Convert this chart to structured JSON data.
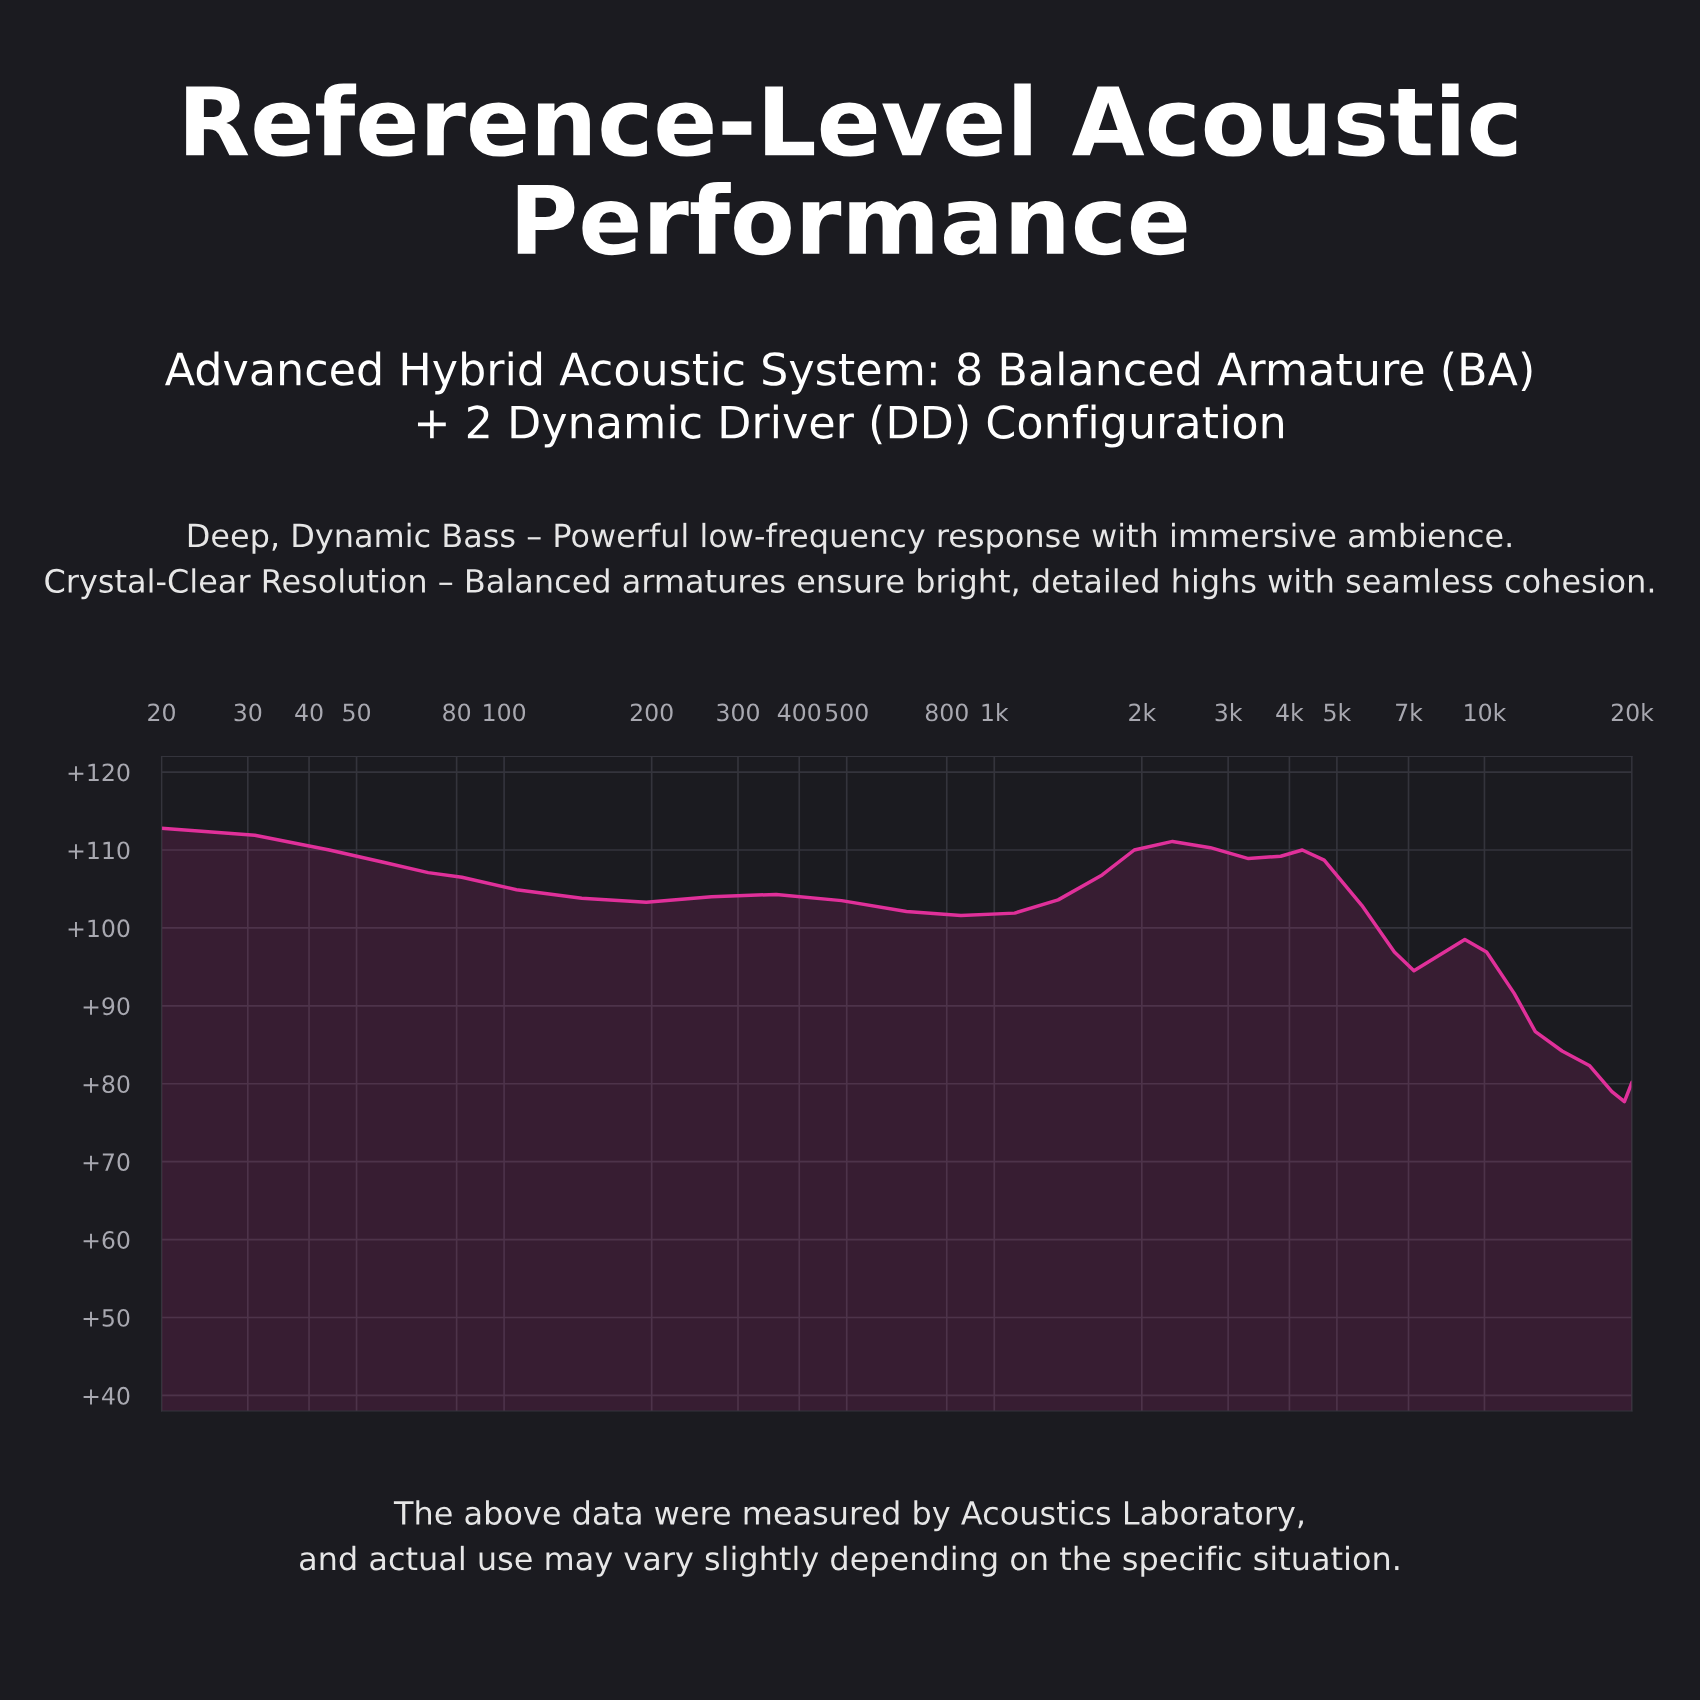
{
  "chart_data": {
    "type": "area",
    "title": "Reference-Level Acoustic\nPerformance",
    "subtitle": "Advanced Hybrid Acoustic System: 8 Balanced Armature (BA)\n+ 2 Dynamic Driver (DD) Configuration",
    "annotations": [
      "Deep, Dynamic Bass – Powerful low-frequency response with immersive ambience.\nCrystal-Clear Resolution – Balanced armatures ensure bright, detailed highs with seamless cohesion.",
      "The above data were measured by Acoustics Laboratory,\nand actual use may vary slightly depending on the specific situation."
    ],
    "log": "x",
    "series": [
      {
        "color": "#e0309a",
        "x": [
          20,
          31,
          44,
          57,
          70,
          82,
          106,
          144,
          195,
          265,
          359,
          488,
          662,
          855,
          1100,
          1350,
          1660,
          1930,
          2310,
          2760,
          3300,
          3840,
          4250,
          4710,
          5620,
          6550,
          7180,
          8040,
          9120,
          10100,
          11500,
          12700,
          14400,
          16400,
          18200,
          19300,
          20000
        ],
        "values": [
          112.8,
          111.9,
          110,
          108.4,
          107.1,
          106.5,
          104.9,
          103.8,
          103.3,
          104,
          104.3,
          103.5,
          102.1,
          101.6,
          101.9,
          103.6,
          106.8,
          110,
          111.1,
          110.3,
          108.9,
          109.2,
          110,
          108.7,
          102.9,
          96.9,
          94.5,
          96.4,
          98.5,
          96.9,
          91.6,
          86.7,
          84.2,
          82.3,
          79,
          77.7,
          80.2
        ]
      }
    ],
    "xlim": [
      20,
      20000
    ],
    "xticks": [
      20,
      30,
      40,
      50,
      80,
      100,
      200,
      300,
      400,
      500,
      800,
      {
        "value": 1000,
        "label": "1k"
      },
      {
        "value": 2000,
        "label": "2k"
      },
      {
        "value": 3000,
        "label": "3k"
      },
      {
        "value": 4000,
        "label": "4k"
      },
      {
        "value": 5000,
        "label": "5k"
      },
      {
        "value": 7000,
        "label": "7k"
      },
      {
        "value": 10000,
        "label": "10k"
      },
      {
        "value": 20000,
        "label": "20k"
      }
    ],
    "ylim": [
      38,
      122
    ],
    "yticks": [
      {
        "value": 40,
        "label": "+40"
      },
      {
        "value": 50,
        "label": "+50"
      },
      {
        "value": 60,
        "label": "+60"
      },
      {
        "value": 70,
        "label": "+70"
      },
      {
        "value": 80,
        "label": "+80"
      },
      {
        "value": 90,
        "label": "+90"
      },
      {
        "value": 100,
        "label": "+100"
      },
      {
        "value": 110,
        "label": "+110"
      },
      {
        "value": 120,
        "label": "+120"
      }
    ],
    "grid": true
  }
}
